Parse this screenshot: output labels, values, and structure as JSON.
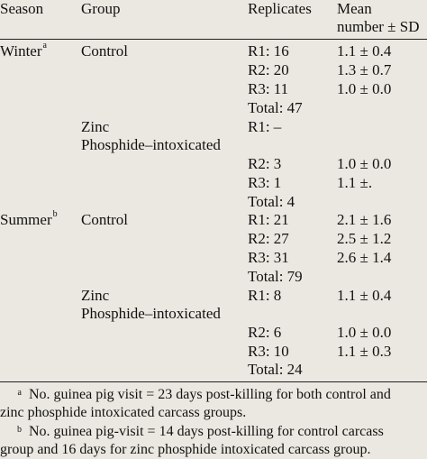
{
  "headers": {
    "season": "Season",
    "group": "Group",
    "replicates": "Replicates",
    "mean_line1": "Mean",
    "mean_line2": "number ± SD"
  },
  "winter": {
    "season": "Winter",
    "season_mark": "a",
    "control": {
      "group": "Control",
      "rows": [
        {
          "rep": "R1: 16",
          "mean": "1.1 ± 0.4"
        },
        {
          "rep": "R2: 20",
          "mean": "1.3 ± 0.7"
        },
        {
          "rep": "R3: 11",
          "mean": "1.0 ± 0.0"
        }
      ],
      "total": "Total: 47"
    },
    "zinc": {
      "group_line1": "Zinc",
      "group_line2": "Phosphide–intoxicated",
      "rows": [
        {
          "rep": "R1: –",
          "mean": ""
        },
        {
          "rep": "R2: 3",
          "mean": "1.0 ± 0.0"
        },
        {
          "rep": "R3: 1",
          "mean": "1.1 ±."
        }
      ],
      "total": "Total: 4"
    }
  },
  "summer": {
    "season": "Summer",
    "season_mark": "b",
    "control": {
      "group": "Control",
      "rows": [
        {
          "rep": "R1: 21",
          "mean": "2.1 ± 1.6"
        },
        {
          "rep": "R2: 27",
          "mean": "2.5 ± 1.2"
        },
        {
          "rep": "R3: 31",
          "mean": "2.6 ± 1.4"
        }
      ],
      "total": "Total: 79"
    },
    "zinc": {
      "group_line1": "Zinc",
      "group_line2": "Phosphide–intoxicated",
      "rows": [
        {
          "rep": "R1: 8",
          "mean": "1.1 ± 0.4"
        },
        {
          "rep": "R2: 6",
          "mean": "1.0 ± 0.0"
        },
        {
          "rep": "R3: 10",
          "mean": "1.1 ± 0.3"
        }
      ],
      "total": "Total: 24"
    }
  },
  "footnotes": {
    "a_mark": "a",
    "a_line1": "No. guinea pig visit = 23 days post-killing for both control and",
    "a_line2": "zinc phosphide intoxicated carcass groups.",
    "b_mark": "b",
    "b_line1": "No. guinea pig-visit = 14 days post-killing for control carcass",
    "b_line2": "group and 16 days for zinc phosphide intoxicated carcass group."
  }
}
